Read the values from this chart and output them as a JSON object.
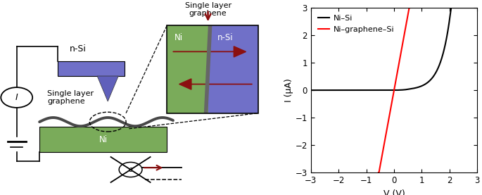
{
  "fig_width": 6.85,
  "fig_height": 2.77,
  "dpi": 100,
  "plot_xlim": [
    -3,
    3
  ],
  "plot_ylim": [
    -3,
    3
  ],
  "plot_xticks": [
    -3,
    -2,
    -1,
    0,
    1,
    2,
    3
  ],
  "plot_yticks": [
    -3,
    -2,
    -1,
    0,
    1,
    2,
    3
  ],
  "xlabel": "V (V)",
  "ylabel": "I (μA)",
  "legend_entries": [
    "Ni–Si",
    "Ni–graphene–Si"
  ],
  "legend_colors": [
    "black",
    "red"
  ],
  "ni_color": "#7aab5a",
  "si_color": "#7070c8",
  "graphene_color": "#555555",
  "arrow_color": "#8b1010",
  "tip_color": "#6060bb"
}
